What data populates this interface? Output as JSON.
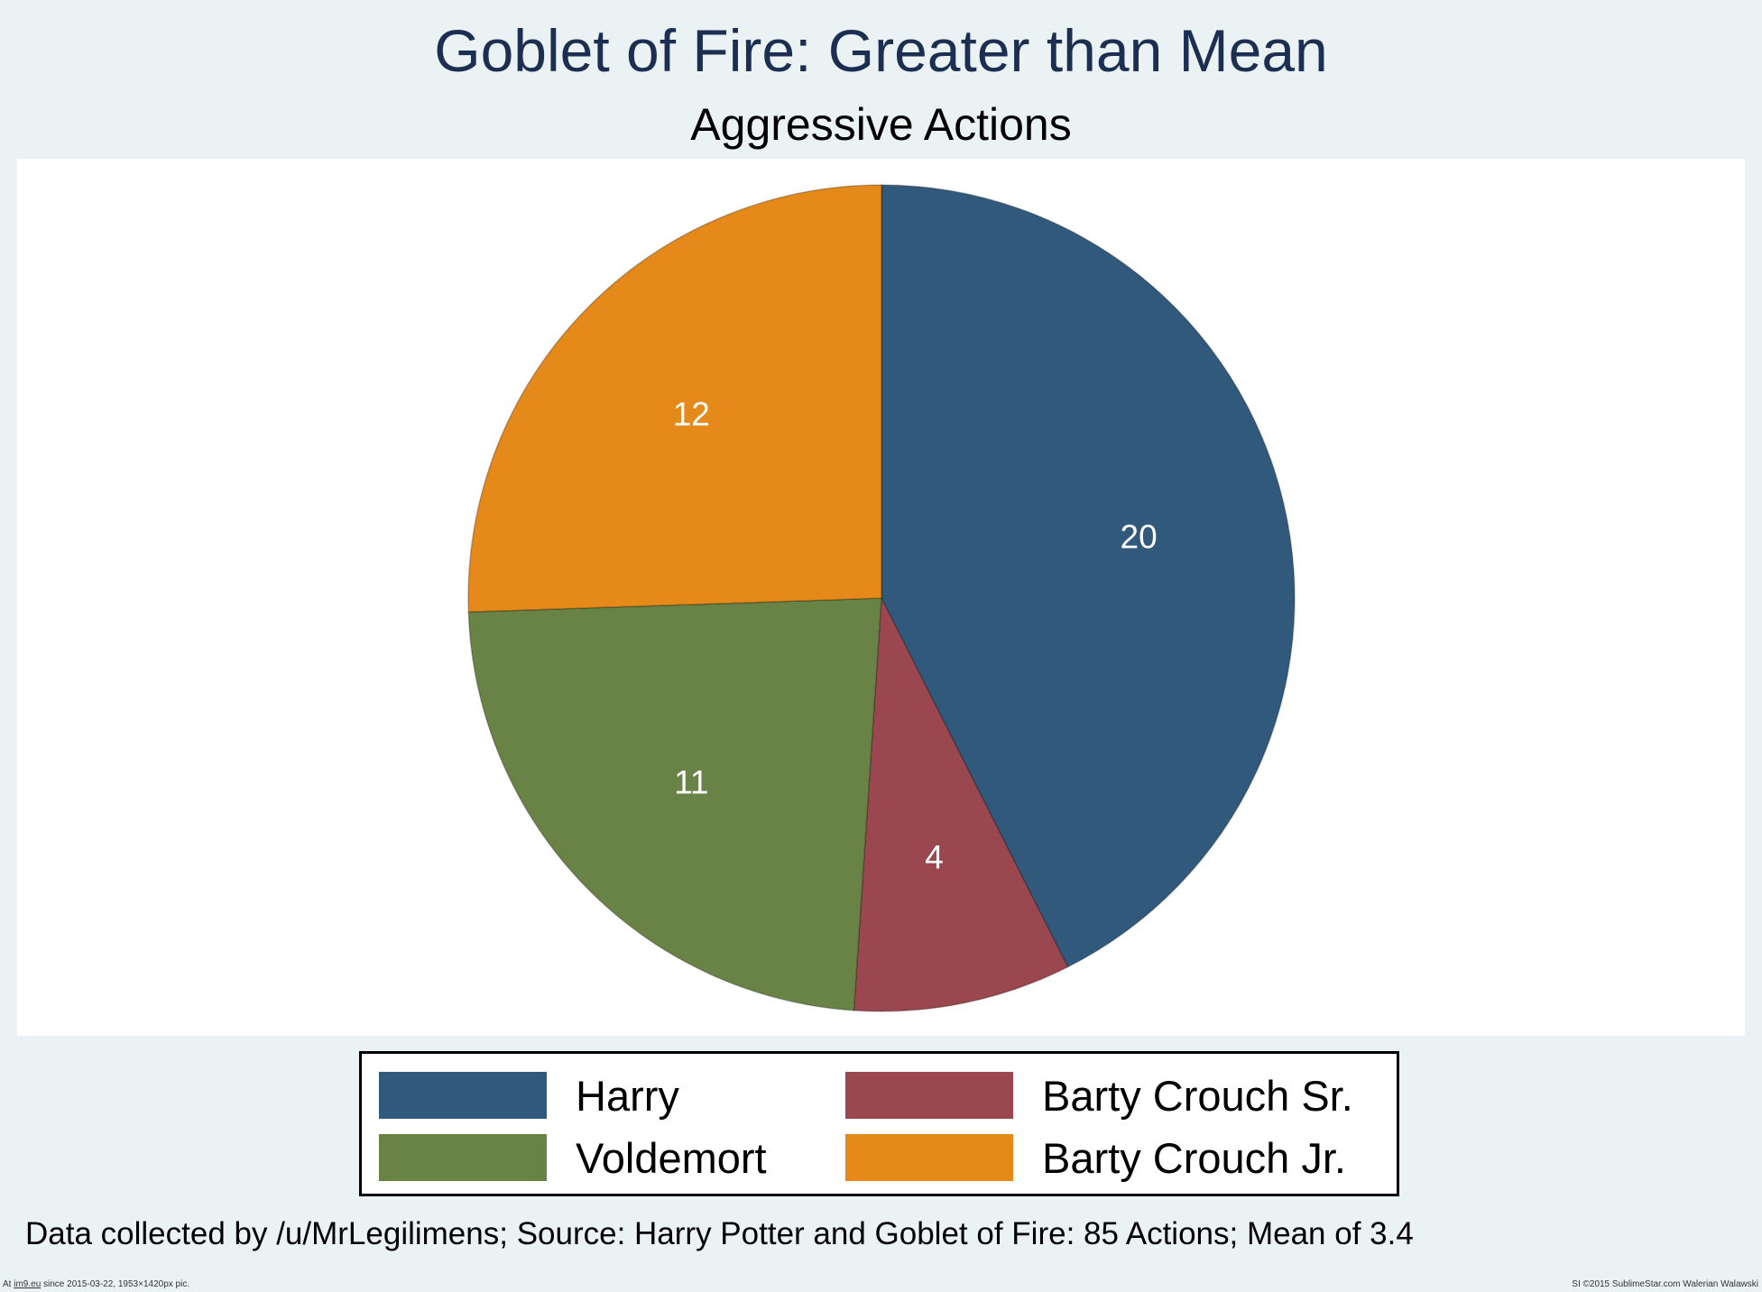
{
  "chart_data": {
    "type": "pie",
    "title": "Goblet of Fire: Greater than Mean",
    "subtitle": "Aggressive Actions",
    "slices": [
      {
        "name": "Harry",
        "value": 20,
        "color": "#31597c"
      },
      {
        "name": "Barty Crouch Sr.",
        "value": 4,
        "color": "#9a474f"
      },
      {
        "name": "Voldemort",
        "value": 11,
        "color": "#688345"
      },
      {
        "name": "Barty Crouch Jr.",
        "value": 12,
        "color": "#e4891a"
      }
    ],
    "legend": {
      "position": "bottom",
      "order": [
        "Harry",
        "Barty Crouch Sr.",
        "Voldemort",
        "Barty Crouch Jr."
      ]
    },
    "note": "Data collected by /u/MrLegilimens; Source: Harry Potter and Goblet of Fire: 85 Actions; Mean of 3.4"
  },
  "footer": {
    "left_prefix": "At ",
    "left_link": "im9.eu",
    "left_suffix": " since 2015-03-22, 1953×1420px pic.",
    "right": "SI ©2015 SublimeStar.com Walerian Walawski"
  }
}
